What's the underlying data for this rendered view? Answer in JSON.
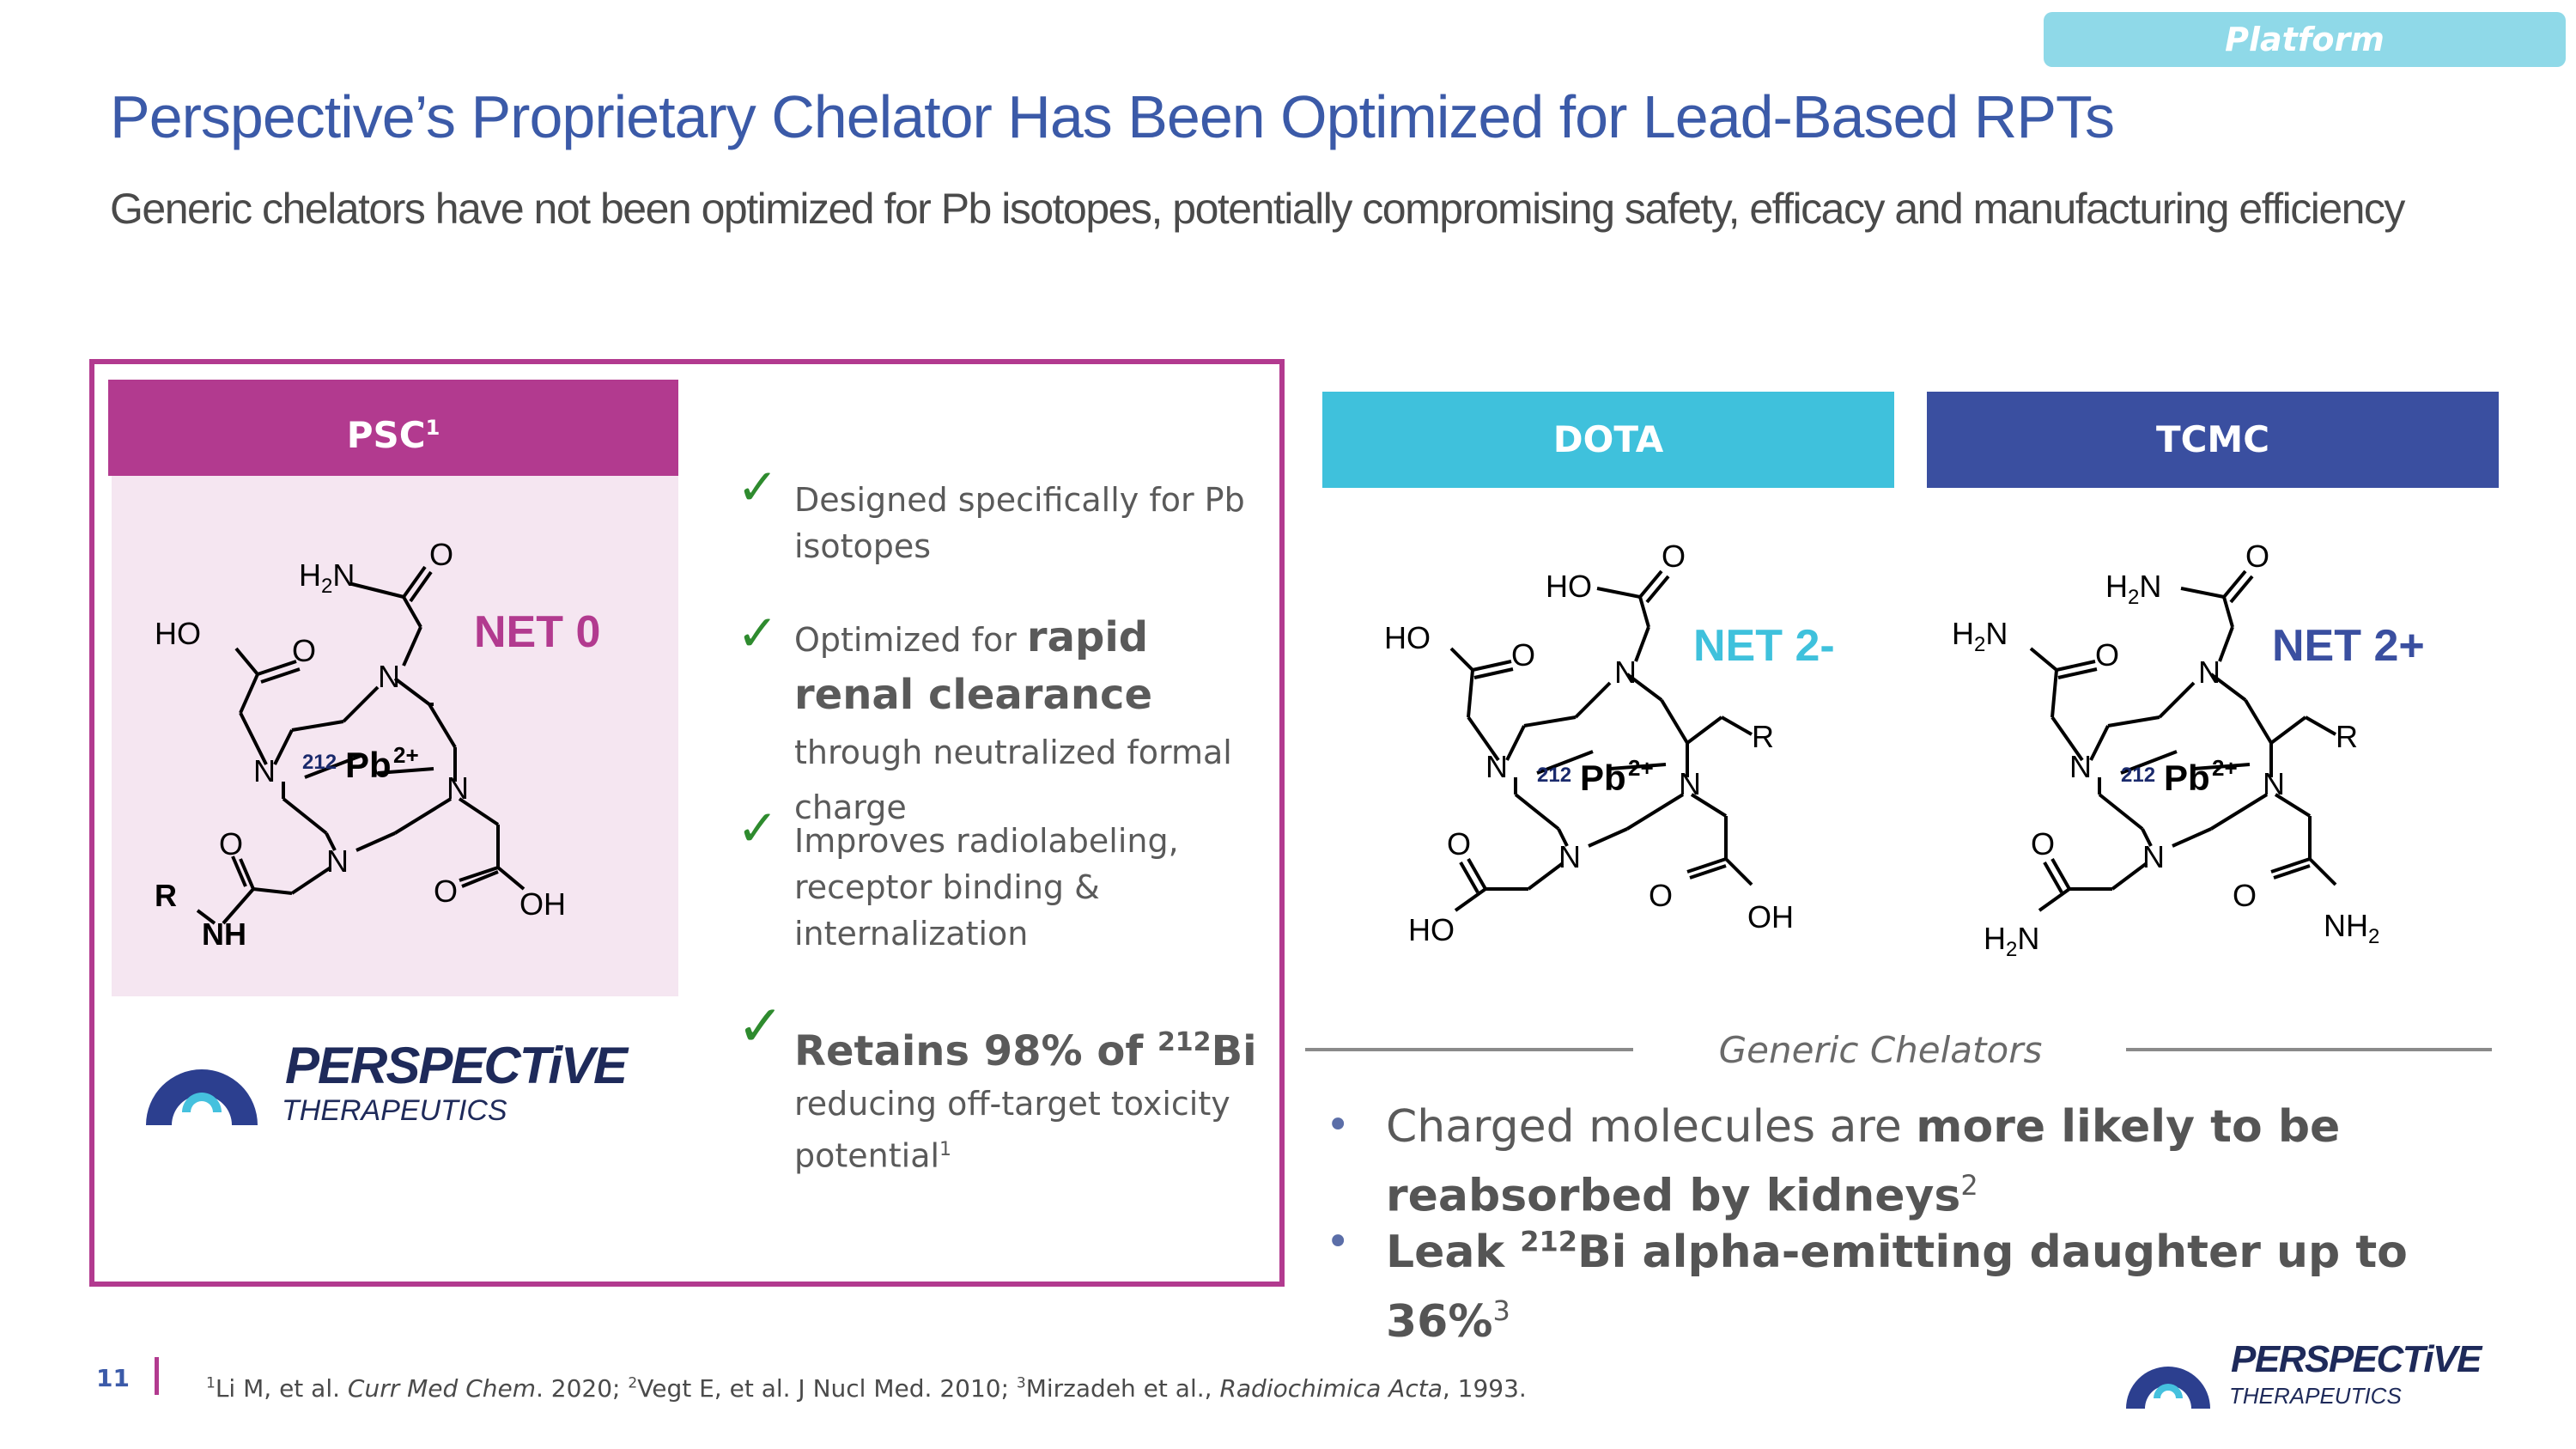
{
  "header": {
    "tag": "Platform",
    "title": "Perspective’s Proprietary Chelator Has Been Optimized for Lead-Based RPTs",
    "subtitle": "Generic chelators have not been optimized for Pb isotopes, potentially compromising safety, efficacy and manufacturing efficiency"
  },
  "psc": {
    "header": "PSC",
    "header_sup": "1",
    "net_label": "NET 0",
    "molecule": {
      "isotope_mass": "212",
      "metal": "Pb",
      "charge": "2+",
      "labels": [
        "H2N",
        "O",
        "HO",
        "O",
        "N",
        "N",
        "N",
        "N",
        "O",
        "R",
        "NH",
        "O",
        "OH"
      ]
    },
    "logo": {
      "name": "PERSPECTiVE",
      "sub": "THERAPEUTICS"
    },
    "bullets": [
      {
        "check": "✓",
        "text": "Designed specifically for Pb isotopes"
      },
      {
        "check": "✓",
        "pre": "Optimized for ",
        "bold": "rapid renal clearance",
        "post": " through neutralized formal charge"
      },
      {
        "check": "✓",
        "text": "Improves radiolabeling, receptor binding & internalization"
      },
      {
        "check": "✓",
        "head": "Retains 98% of ",
        "head_sup": "212",
        "head_tail": "Bi",
        "text": "reducing off-target toxicity potential",
        "text_sup": "1"
      }
    ]
  },
  "dota": {
    "header": "DOTA",
    "net_label": "NET 2-",
    "color": "#3fc1dc"
  },
  "tcmc": {
    "header": "TCMC",
    "net_label": "NET 2+",
    "color": "#3a4fa0"
  },
  "generic": {
    "label": "Generic Chelators",
    "bullet1_pre": "Charged molecules are ",
    "bullet1_bold": "more likely to be reabsorbed by kidneys",
    "bullet1_sup": "2",
    "bullet2_pre": "Leak ",
    "bullet2_sup_mass": "212",
    "bullet2_bold": "Bi alpha-emitting daughter up to 36%",
    "bullet2_sup": "3",
    "bullet_glyph": "•"
  },
  "footer": {
    "page": "11",
    "ref1_sup": "1",
    "ref1_pre": "Li M, et al. ",
    "ref1_journal": "Curr Med Chem",
    "ref1_post": ". 2020; ",
    "ref2_sup": "2",
    "ref2": "Vegt E, et al. J Nucl Med. 2010; ",
    "ref3_sup": "3",
    "ref3_pre": "Mirzadeh et al., ",
    "ref3_journal": "Radiochimica Acta",
    "ref3_post": ", 1993.",
    "logo_name": "PERSPECTiVE",
    "logo_sub": "THERAPEUTICS"
  },
  "colors": {
    "title": "#3b5aa8",
    "psc": "#b23a8f",
    "dota": "#3fc1dc",
    "tcmc": "#3a4fa0",
    "check": "#2e8b2e"
  }
}
